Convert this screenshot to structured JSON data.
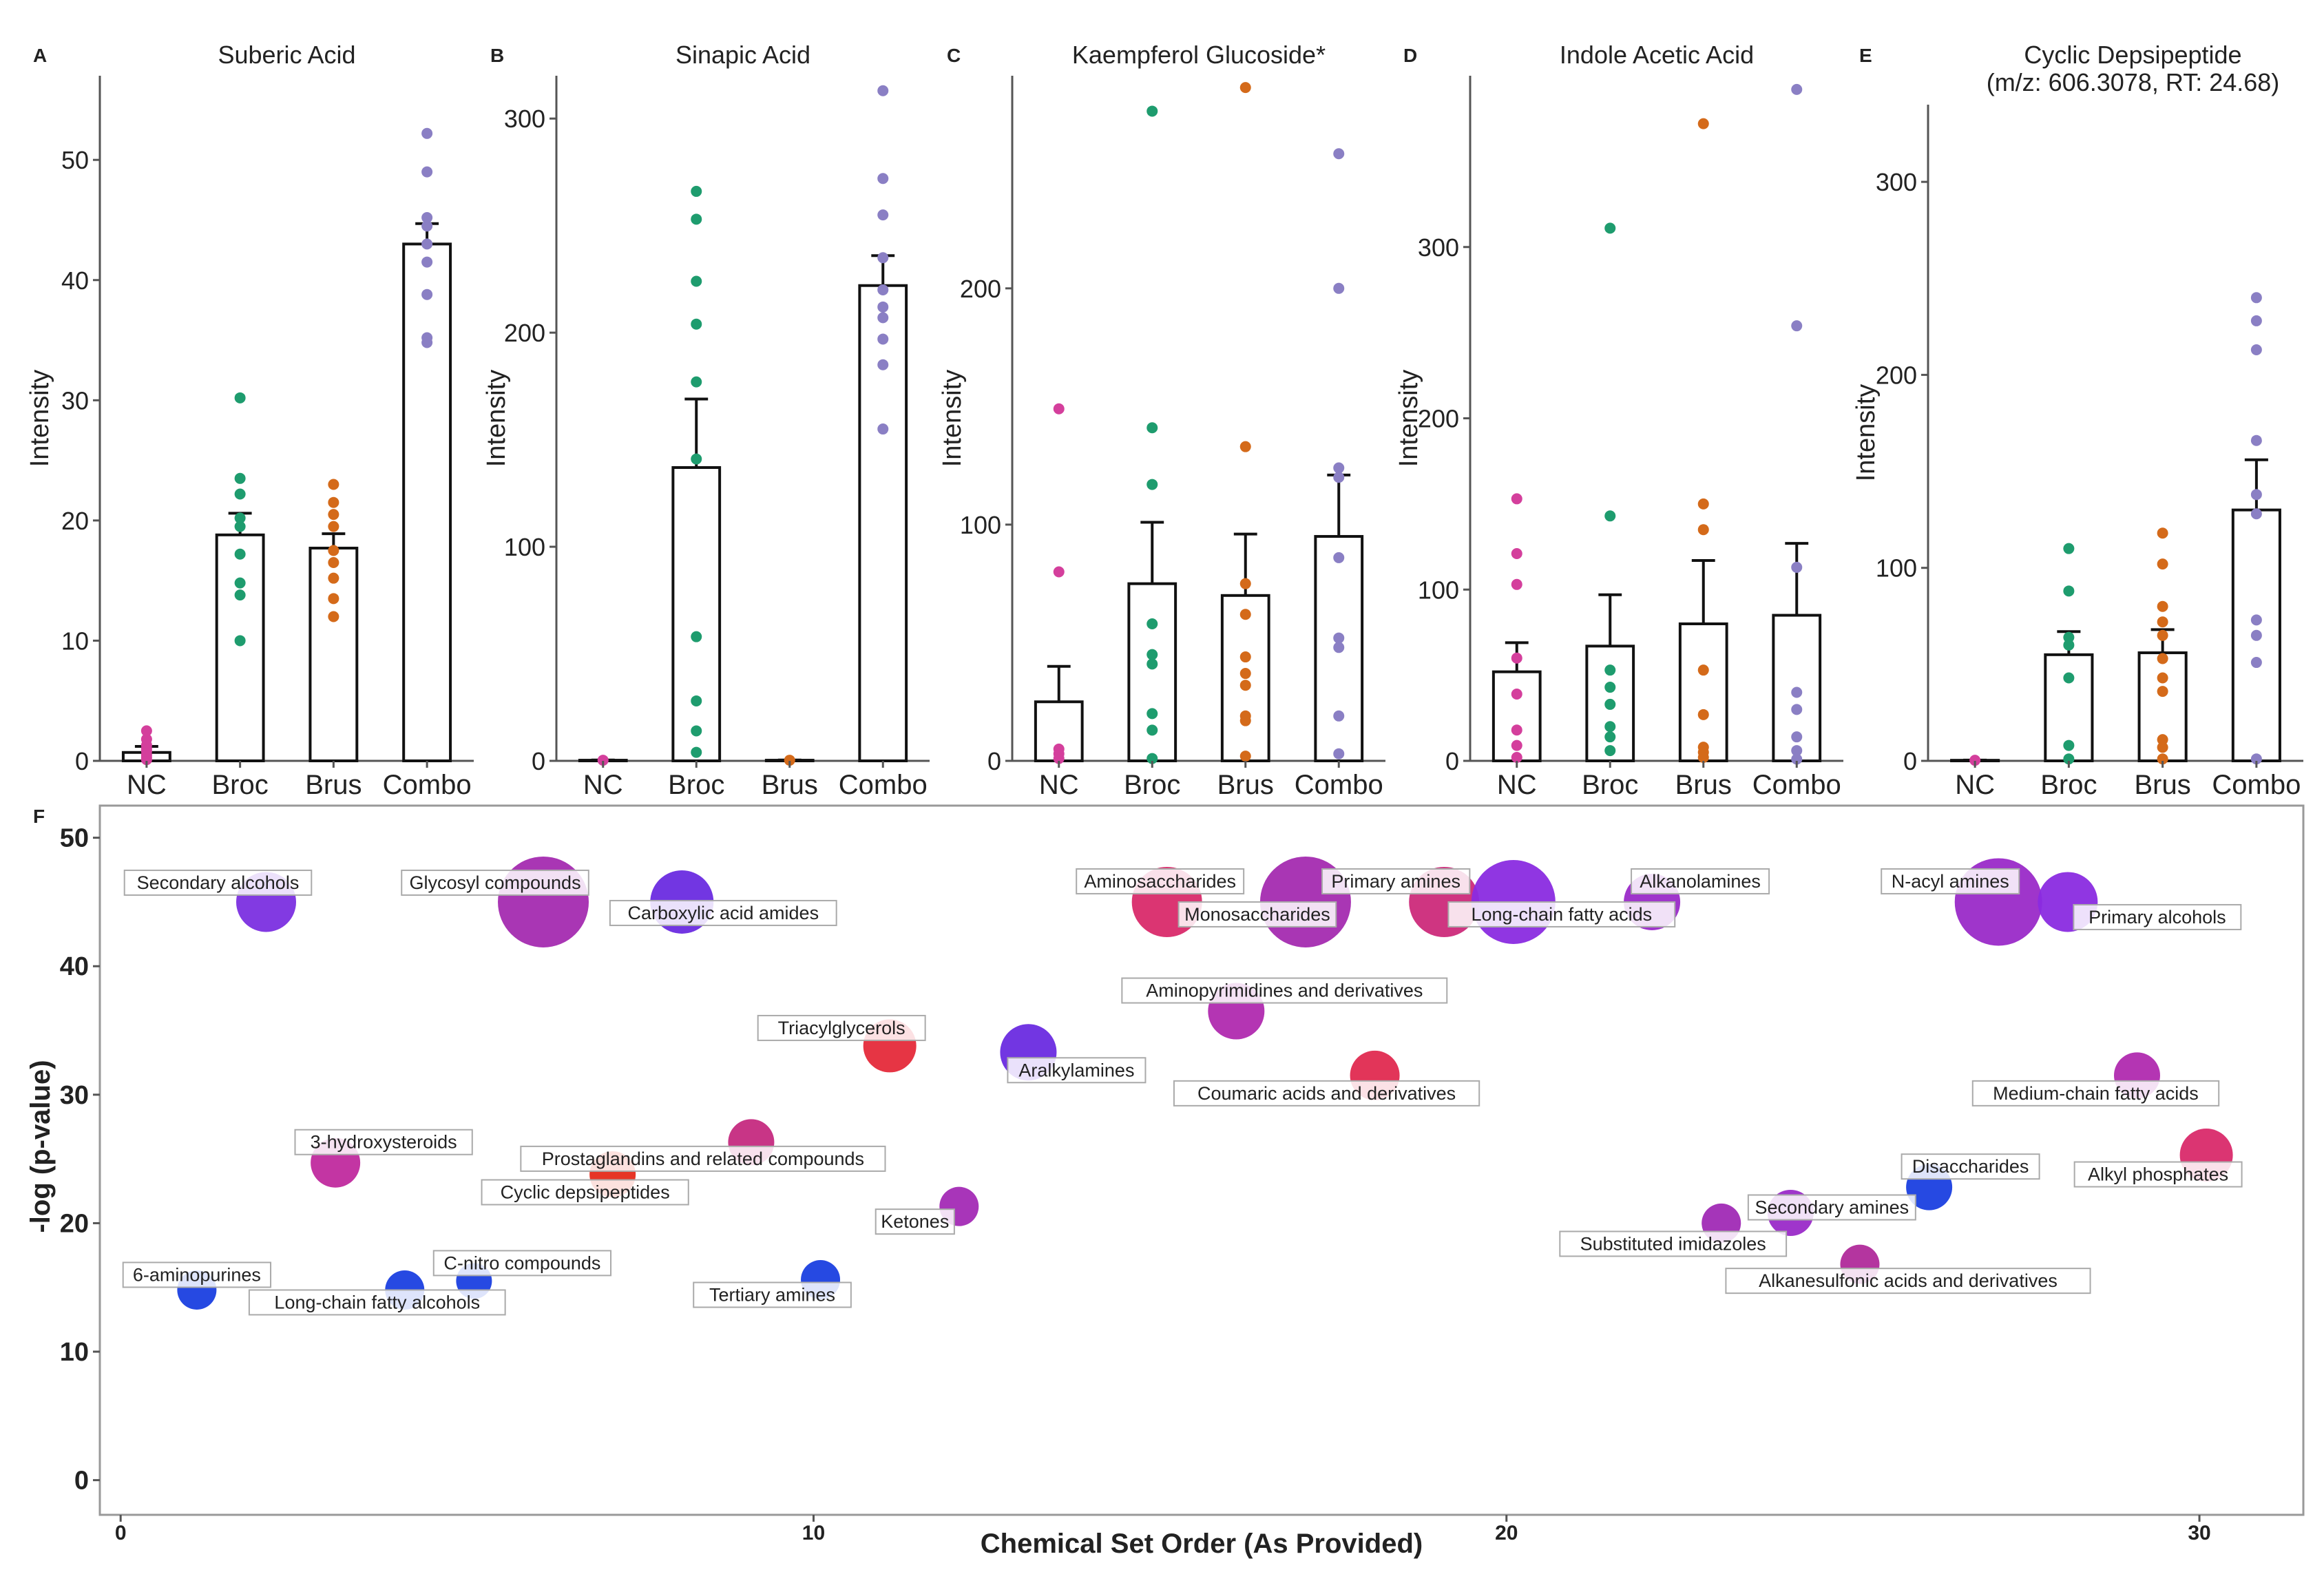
{
  "chart_data": [
    {
      "type": "bar",
      "panel_letter": "A",
      "title": "Suberic Acid",
      "xlabel": "",
      "ylabel": "Intensity",
      "categories": [
        "NC",
        "Broc",
        "Brus",
        "Combo"
      ],
      "ylim": [
        0,
        57
      ],
      "yticks": [
        0,
        10,
        20,
        30,
        40,
        50
      ],
      "means": [
        0.7,
        18.8,
        17.7,
        43.0
      ],
      "se": [
        0.5,
        1.8,
        1.2,
        1.7
      ],
      "points": [
        [
          0.1,
          0.3,
          0.5,
          0.8,
          1.0,
          1.3,
          1.8,
          2.5
        ],
        [
          10.0,
          13.8,
          14.8,
          17.2,
          19.5,
          20.2,
          22.2,
          23.5,
          30.2
        ],
        [
          12.0,
          13.5,
          15.2,
          16.5,
          17.5,
          19.5,
          20.5,
          21.5,
          23.0
        ],
        [
          34.8,
          35.2,
          38.8,
          41.5,
          43.0,
          44.5,
          45.2,
          49.0,
          52.2
        ]
      ],
      "grid": false
    },
    {
      "type": "bar",
      "panel_letter": "B",
      "title": "Sinapic Acid",
      "xlabel": "",
      "ylabel": "Intensity",
      "categories": [
        "NC",
        "Broc",
        "Brus",
        "Combo"
      ],
      "ylim": [
        0,
        320
      ],
      "yticks": [
        0,
        100,
        200,
        300
      ],
      "means": [
        0.3,
        137.0,
        0.3,
        222.0
      ],
      "se": [
        0.1,
        32.0,
        0.1,
        14.0
      ],
      "points": [
        [
          0.3
        ],
        [
          4.0,
          14.0,
          28.0,
          58.0,
          141.0,
          177.0,
          204.0,
          224.0,
          253.0,
          266.0
        ],
        [
          0.3
        ],
        [
          155.0,
          185.0,
          197.0,
          207.0,
          212.0,
          220.0,
          235.0,
          255.0,
          272.0,
          313.0
        ]
      ],
      "grid": false
    },
    {
      "type": "bar",
      "panel_letter": "C",
      "title": "Kaempferol Glucoside*",
      "xlabel": "",
      "ylabel": "Intensity",
      "categories": [
        "NC",
        "Broc",
        "Brus",
        "Combo"
      ],
      "ylim": [
        0,
        290
      ],
      "yticks": [
        0,
        100,
        200
      ],
      "means": [
        25.0,
        75.0,
        70.0,
        95.0
      ],
      "se": [
        15.0,
        26.0,
        26.0,
        26.0
      ],
      "points": [
        [
          1.0,
          3.0,
          5.0,
          80.0,
          149.0
        ],
        [
          1.0,
          13.0,
          20.0,
          41.0,
          45.0,
          58.0,
          117.0,
          141.0,
          275.0
        ],
        [
          2.0,
          17.0,
          19.0,
          32.0,
          37.0,
          44.0,
          62.0,
          75.0,
          133.0,
          285.0
        ],
        [
          3.0,
          19.0,
          48.0,
          52.0,
          86.0,
          120.0,
          124.0,
          200.0,
          257.0
        ]
      ],
      "grid": false
    },
    {
      "type": "bar",
      "panel_letter": "D",
      "title": "Indole Acetic Acid",
      "xlabel": "",
      "ylabel": "Intensity",
      "categories": [
        "NC",
        "Broc",
        "Brus",
        "Combo"
      ],
      "ylim": [
        0,
        400
      ],
      "yticks": [
        0,
        100,
        200,
        300
      ],
      "means": [
        52.0,
        67.0,
        80.0,
        85.0
      ],
      "se": [
        17.0,
        30.0,
        37.0,
        42.0
      ],
      "points": [
        [
          2.0,
          9.0,
          18.0,
          39.0,
          60.0,
          103.0,
          121.0,
          153.0
        ],
        [
          6.0,
          14.0,
          20.0,
          33.0,
          43.0,
          53.0,
          143.0,
          311.0
        ],
        [
          2.0,
          5.0,
          8.0,
          27.0,
          53.0,
          135.0,
          150.0,
          372.0
        ],
        [
          1.0,
          6.0,
          14.0,
          30.0,
          40.0,
          113.0,
          254.0,
          392.0
        ]
      ],
      "grid": false
    },
    {
      "type": "bar",
      "panel_letter": "E",
      "title": "Cyclic Depsipeptide",
      "subtitle": "(m/z: 606.3078, RT: 24.68)",
      "xlabel": "",
      "ylabel": "Intensity",
      "categories": [
        "NC",
        "Broc",
        "Brus",
        "Combo"
      ],
      "ylim": [
        0,
        340
      ],
      "yticks": [
        0,
        100,
        200,
        300
      ],
      "means": [
        0.3,
        55.0,
        56.0,
        130.0
      ],
      "se": [
        0.1,
        12.0,
        12.0,
        26.0
      ],
      "points": [
        [
          0.3
        ],
        [
          1.0,
          8.0,
          43.0,
          60.0,
          64.0,
          88.0,
          110.0
        ],
        [
          1.0,
          7.0,
          11.0,
          36.0,
          43.0,
          53.0,
          65.0,
          72.0,
          80.0,
          102.0,
          118.0
        ],
        [
          1.0,
          51.0,
          65.0,
          73.0,
          128.0,
          138.0,
          166.0,
          213.0,
          228.0,
          240.0
        ]
      ],
      "grid": false
    },
    {
      "type": "scatter",
      "panel_letter": "F",
      "title": "",
      "xlabel": "Chemical Set Order (As Provided)",
      "ylabel": "-log (p-value)",
      "xlim": [
        -0.3,
        31.5
      ],
      "ylim": [
        -2.7,
        52.5
      ],
      "xticks": [
        0,
        10,
        20,
        30
      ],
      "yticks": [
        0,
        10,
        20,
        30,
        40,
        50
      ],
      "grid": false,
      "points": [
        {
          "label": "6-aminopurines",
          "x": 1.1,
          "y": 14.8,
          "size": 0.25,
          "color": "#1a3fe0"
        },
        {
          "label": "Secondary alcohols",
          "x": 2.1,
          "y": 45.0,
          "size": 0.55,
          "color": "#7b2fe0"
        },
        {
          "label": "3-hydroxysteroids",
          "x": 3.1,
          "y": 24.7,
          "size": 0.4,
          "color": "#c02a9e"
        },
        {
          "label": "Long-chain fatty alcohols",
          "x": 4.1,
          "y": 14.8,
          "size": 0.25,
          "color": "#1a3fe0"
        },
        {
          "label": "C-nitro compounds",
          "x": 5.1,
          "y": 15.5,
          "size": 0.2,
          "color": "#1a3fe0"
        },
        {
          "label": "Glycosyl compounds",
          "x": 6.1,
          "y": 45.0,
          "size": 1.0,
          "color": "#a42bb0"
        },
        {
          "label": "Cyclic depsipeptides",
          "x": 7.1,
          "y": 23.8,
          "size": 0.35,
          "color": "#e52a1a"
        },
        {
          "label": "Carboxylic acid amides",
          "x": 8.1,
          "y": 45.0,
          "size": 0.6,
          "color": "#6a2be0"
        },
        {
          "label": "Prostaglandins and related compounds",
          "x": 9.1,
          "y": 26.3,
          "size": 0.35,
          "color": "#c52a80"
        },
        {
          "label": "Tertiary amines",
          "x": 10.1,
          "y": 15.6,
          "size": 0.25,
          "color": "#1a3fe0"
        },
        {
          "label": "Triacylglycerols",
          "x": 11.1,
          "y": 33.8,
          "size": 0.45,
          "color": "#e52a3a"
        },
        {
          "label": "Ketones",
          "x": 12.1,
          "y": 21.3,
          "size": 0.25,
          "color": "#a32ab5"
        },
        {
          "label": "Aralkylamines",
          "x": 13.1,
          "y": 33.3,
          "size": 0.5,
          "color": "#6a2be0"
        },
        {
          "label": "Aminosaccharides",
          "x": 15.1,
          "y": 45.0,
          "size": 0.7,
          "color": "#d92a6a"
        },
        {
          "label": "Aminopyrimidines and derivatives",
          "x": 16.1,
          "y": 36.5,
          "size": 0.5,
          "color": "#b02aaf"
        },
        {
          "label": "Monosaccharides",
          "x": 17.1,
          "y": 45.0,
          "size": 1.0,
          "color": "#a42bb0"
        },
        {
          "label": "Coumaric acids and derivatives",
          "x": 18.1,
          "y": 31.5,
          "size": 0.4,
          "color": "#e02a50"
        },
        {
          "label": "Primary amines",
          "x": 19.1,
          "y": 45.0,
          "size": 0.7,
          "color": "#cc2a7a"
        },
        {
          "label": "Long-chain fatty acids",
          "x": 20.1,
          "y": 45.0,
          "size": 0.9,
          "color": "#8a2be0"
        },
        {
          "label": "Alkanolamines",
          "x": 22.1,
          "y": 45.0,
          "size": 0.5,
          "color": "#9a2ac8"
        },
        {
          "label": "Substituted imidazoles",
          "x": 23.1,
          "y": 20.0,
          "size": 0.25,
          "color": "#a02ab5"
        },
        {
          "label": "Secondary amines",
          "x": 24.1,
          "y": 20.8,
          "size": 0.35,
          "color": "#9a2ac8"
        },
        {
          "label": "Alkanesulfonic acids and derivatives",
          "x": 25.1,
          "y": 16.8,
          "size": 0.25,
          "color": "#b02a9a"
        },
        {
          "label": "Disaccharides",
          "x": 26.1,
          "y": 22.8,
          "size": 0.35,
          "color": "#1a3fe0"
        },
        {
          "label": "N-acyl amines",
          "x": 27.1,
          "y": 45.0,
          "size": 0.95,
          "color": "#9a2ac8"
        },
        {
          "label": "Primary alcohols",
          "x": 28.1,
          "y": 45.0,
          "size": 0.55,
          "color": "#8a2be0"
        },
        {
          "label": "Medium-chain fatty acids",
          "x": 29.1,
          "y": 31.5,
          "size": 0.35,
          "color": "#b02aaf"
        },
        {
          "label": "Alkyl phosphates",
          "x": 30.1,
          "y": 25.3,
          "size": 0.45,
          "color": "#d92a6a"
        }
      ]
    }
  ],
  "group_colors": [
    "#d43f9c",
    "#1e9c6e",
    "#d46a1a",
    "#8a7fc4"
  ]
}
